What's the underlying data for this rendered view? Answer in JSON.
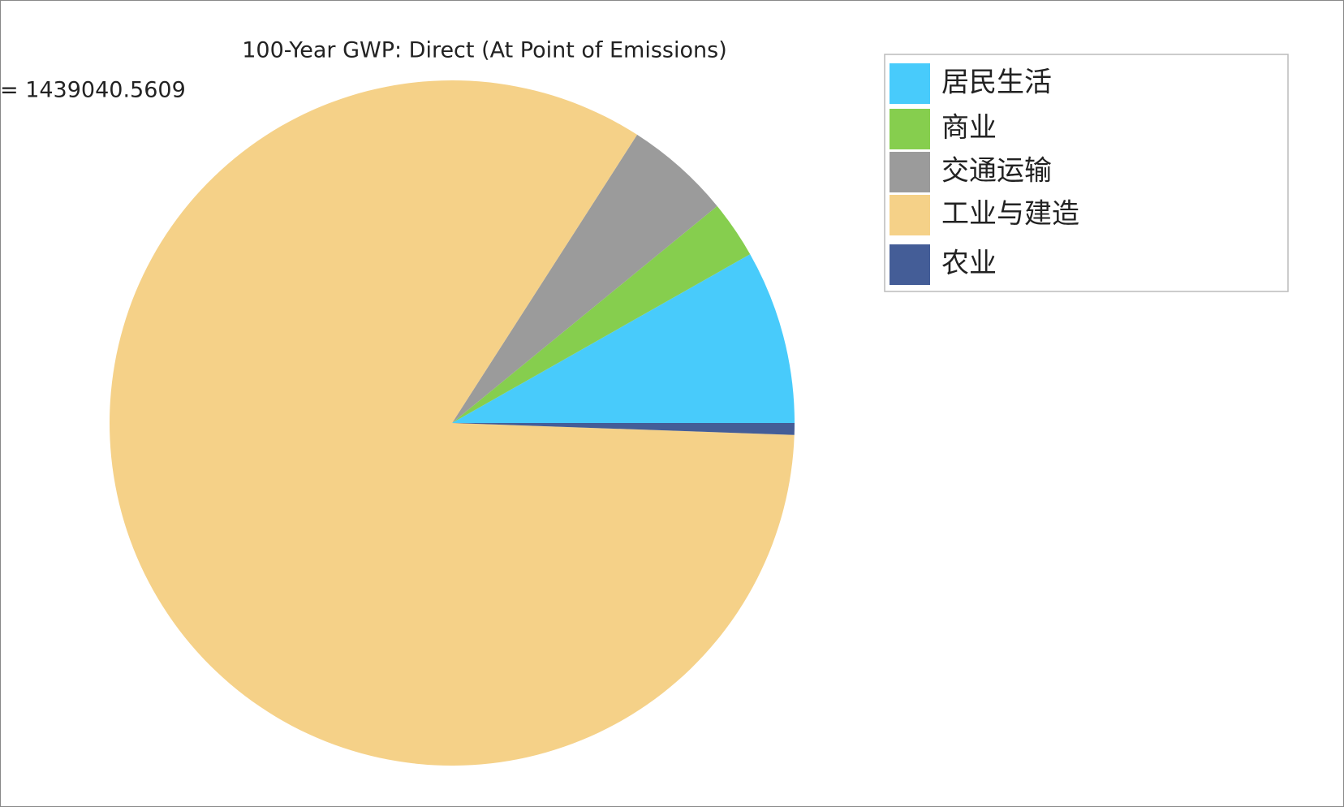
{
  "chart_data": {
    "type": "pie",
    "title": "100-Year GWP: Direct (At Point of Emissions)",
    "total_label": "= 1439040.5609",
    "categories": [
      "居民生活",
      "商业",
      "交通运输",
      "工业与建造",
      "农业"
    ],
    "values": [
      118000,
      39000,
      72000,
      1202000,
      8000
    ],
    "colors": [
      "#48cbfb",
      "#86ce4e",
      "#9b9b9b",
      "#f5d188",
      "#445d97"
    ],
    "legend": "top-right"
  }
}
